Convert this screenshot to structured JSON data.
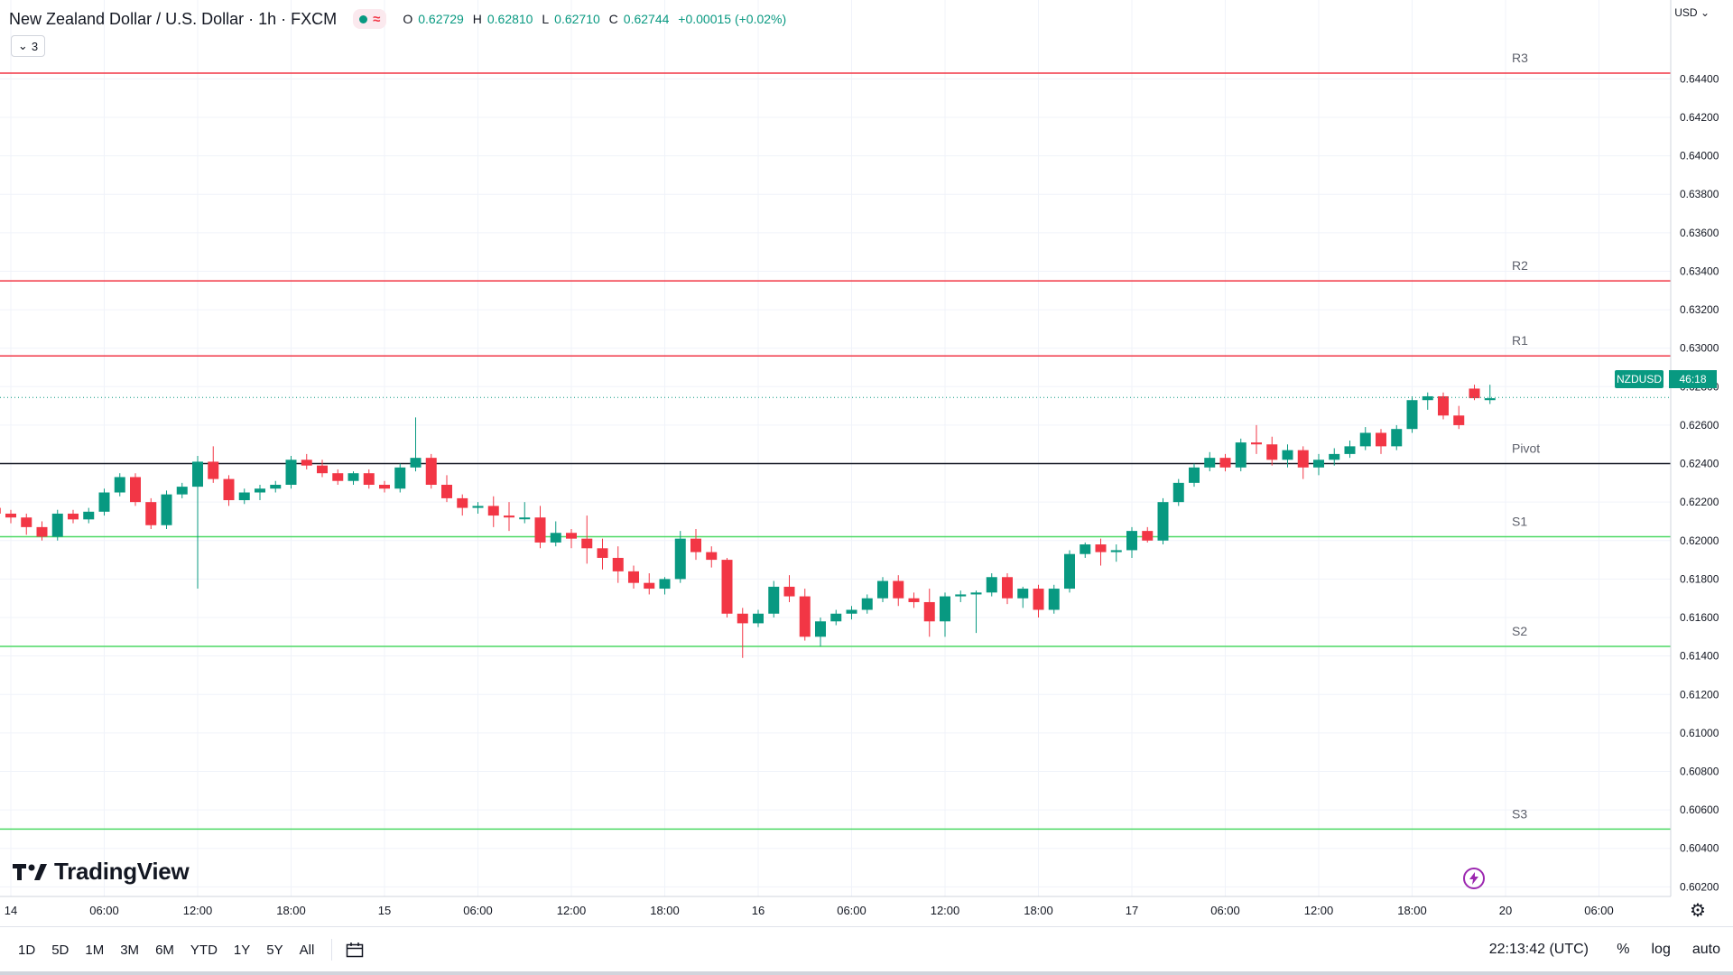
{
  "header": {
    "symbol_title": "New Zealand Dollar / U.S. Dollar · 1h · FXCM",
    "market_status_icon": "market-open-dot-icon",
    "wave_glyph": "≈",
    "ohlc": {
      "o_label": "O",
      "o": "0.62729",
      "h_label": "H",
      "h": "0.62810",
      "l_label": "L",
      "l": "0.62710",
      "c_label": "C",
      "c": "0.62744",
      "change": "+0.00015 (+0.02%)"
    },
    "indicator_count": "3",
    "currency": "USD"
  },
  "price_badge": {
    "symbol": "NZDUSD",
    "countdown": "46:18"
  },
  "watermark": "TradingView",
  "bottom_bar": {
    "periods": [
      "1D",
      "5D",
      "1M",
      "3M",
      "6M",
      "YTD",
      "1Y",
      "5Y",
      "All"
    ],
    "clock": "22:13:42 (UTC)",
    "percent_label": "%",
    "log_label": "log",
    "auto_label": "auto"
  },
  "colors": {
    "up": "#089981",
    "down": "#f23645",
    "resistance": "#f23645",
    "support": "#4cd964",
    "pivot": "#131722",
    "grid": "#f0f3fa",
    "badge": "#089981"
  },
  "chart_data": {
    "type": "candlestick",
    "title": "New Zealand Dollar / U.S. Dollar · 1h · FXCM",
    "ylim": [
      0.6015,
      0.6481
    ],
    "y_ticks": [
      "0.60200",
      "0.60400",
      "0.60600",
      "0.60800",
      "0.61000",
      "0.61200",
      "0.61400",
      "0.61600",
      "0.61800",
      "0.62000",
      "0.62200",
      "0.62400",
      "0.62600",
      "0.62800",
      "0.63000",
      "0.63200",
      "0.63400",
      "0.63600",
      "0.63800",
      "0.64000",
      "0.64200",
      "0.64400"
    ],
    "x_tick_labels": [
      "14",
      "06:00",
      "12:00",
      "18:00",
      "15",
      "06:00",
      "12:00",
      "18:00",
      "16",
      "06:00",
      "12:00",
      "18:00",
      "17",
      "06:00",
      "12:00",
      "18:00",
      "20",
      "06:00"
    ],
    "levels": [
      {
        "label": "R3",
        "value": 0.6443
      },
      {
        "label": "R2",
        "value": 0.6335
      },
      {
        "label": "R1",
        "value": 0.6296
      },
      {
        "label": "Pivot",
        "value": 0.624
      },
      {
        "label": "S1",
        "value": 0.6202
      },
      {
        "label": "S2",
        "value": 0.6145
      },
      {
        "label": "S3",
        "value": 0.605
      }
    ],
    "last_price": 0.62744,
    "grid": true,
    "candles": [
      [
        0.6217,
        0.6221,
        0.6213,
        0.6214
      ],
      [
        0.6214,
        0.6216,
        0.6209,
        0.6212
      ],
      [
        0.6212,
        0.6214,
        0.6203,
        0.6207
      ],
      [
        0.6207,
        0.621,
        0.62,
        0.6202
      ],
      [
        0.6202,
        0.6216,
        0.62,
        0.6214
      ],
      [
        0.6214,
        0.6216,
        0.6209,
        0.6211
      ],
      [
        0.6211,
        0.6217,
        0.6209,
        0.6215
      ],
      [
        0.6215,
        0.6227,
        0.6213,
        0.6225
      ],
      [
        0.6225,
        0.6235,
        0.6223,
        0.6233
      ],
      [
        0.6233,
        0.6235,
        0.6218,
        0.622
      ],
      [
        0.622,
        0.6222,
        0.6206,
        0.6208
      ],
      [
        0.6208,
        0.6226,
        0.6206,
        0.6224
      ],
      [
        0.6224,
        0.623,
        0.6222,
        0.6228
      ],
      [
        0.6228,
        0.6244,
        0.6175,
        0.6241
      ],
      [
        0.6241,
        0.6249,
        0.623,
        0.6232
      ],
      [
        0.6232,
        0.6234,
        0.6218,
        0.6221
      ],
      [
        0.6221,
        0.6227,
        0.6219,
        0.6225
      ],
      [
        0.6225,
        0.6229,
        0.6221,
        0.6227
      ],
      [
        0.6227,
        0.6231,
        0.6225,
        0.6229
      ],
      [
        0.6229,
        0.6244,
        0.6227,
        0.6242
      ],
      [
        0.6242,
        0.6245,
        0.6237,
        0.6239
      ],
      [
        0.6239,
        0.6242,
        0.6233,
        0.6235
      ],
      [
        0.6235,
        0.6237,
        0.6229,
        0.6231
      ],
      [
        0.6231,
        0.6236,
        0.6229,
        0.6235
      ],
      [
        0.6235,
        0.6237,
        0.6227,
        0.6229
      ],
      [
        0.6229,
        0.6231,
        0.6225,
        0.6227
      ],
      [
        0.6227,
        0.624,
        0.6225,
        0.6238
      ],
      [
        0.6238,
        0.6264,
        0.6236,
        0.6243
      ],
      [
        0.6243,
        0.6245,
        0.6227,
        0.6229
      ],
      [
        0.6229,
        0.6234,
        0.622,
        0.6222
      ],
      [
        0.6222,
        0.6224,
        0.6213,
        0.6217
      ],
      [
        0.6217,
        0.622,
        0.6214,
        0.6218
      ],
      [
        0.6218,
        0.6223,
        0.6207,
        0.6213
      ],
      [
        0.6213,
        0.622,
        0.6205,
        0.6212
      ],
      [
        0.6212,
        0.622,
        0.6209,
        0.6212
      ],
      [
        0.6212,
        0.6218,
        0.6196,
        0.6199
      ],
      [
        0.6199,
        0.621,
        0.6197,
        0.6204
      ],
      [
        0.6204,
        0.6206,
        0.6196,
        0.6201
      ],
      [
        0.6201,
        0.6213,
        0.6188,
        0.6196
      ],
      [
        0.6196,
        0.6201,
        0.6185,
        0.6191
      ],
      [
        0.6191,
        0.6197,
        0.6178,
        0.6184
      ],
      [
        0.6184,
        0.6187,
        0.6175,
        0.6178
      ],
      [
        0.6178,
        0.6183,
        0.6172,
        0.6175
      ],
      [
        0.6175,
        0.6181,
        0.6172,
        0.618
      ],
      [
        0.618,
        0.6205,
        0.6178,
        0.6201
      ],
      [
        0.6201,
        0.6206,
        0.619,
        0.6194
      ],
      [
        0.6194,
        0.6197,
        0.6186,
        0.619
      ],
      [
        0.619,
        0.6191,
        0.616,
        0.6162
      ],
      [
        0.6162,
        0.6165,
        0.6139,
        0.6157
      ],
      [
        0.6157,
        0.6164,
        0.6155,
        0.6162
      ],
      [
        0.6162,
        0.6179,
        0.616,
        0.6176
      ],
      [
        0.6176,
        0.6182,
        0.6168,
        0.6171
      ],
      [
        0.6171,
        0.6175,
        0.6148,
        0.615
      ],
      [
        0.615,
        0.616,
        0.6145,
        0.6158
      ],
      [
        0.6158,
        0.6164,
        0.6156,
        0.6162
      ],
      [
        0.6162,
        0.6166,
        0.6159,
        0.6164
      ],
      [
        0.6164,
        0.6172,
        0.6162,
        0.617
      ],
      [
        0.617,
        0.6181,
        0.6168,
        0.6179
      ],
      [
        0.6179,
        0.6182,
        0.6166,
        0.617
      ],
      [
        0.617,
        0.6173,
        0.6165,
        0.6168
      ],
      [
        0.6168,
        0.6175,
        0.615,
        0.6158
      ],
      [
        0.6158,
        0.6173,
        0.615,
        0.6171
      ],
      [
        0.6171,
        0.6174,
        0.6168,
        0.6172
      ],
      [
        0.6172,
        0.6174,
        0.6152,
        0.6173
      ],
      [
        0.6173,
        0.6183,
        0.6171,
        0.6181
      ],
      [
        0.6181,
        0.6183,
        0.6167,
        0.617
      ],
      [
        0.617,
        0.6176,
        0.6165,
        0.6175
      ],
      [
        0.6175,
        0.6177,
        0.616,
        0.6164
      ],
      [
        0.6164,
        0.6177,
        0.6162,
        0.6175
      ],
      [
        0.6175,
        0.6195,
        0.6173,
        0.6193
      ],
      [
        0.6193,
        0.6199,
        0.6191,
        0.6198
      ],
      [
        0.6198,
        0.6201,
        0.6187,
        0.6194
      ],
      [
        0.6194,
        0.6198,
        0.6189,
        0.6195
      ],
      [
        0.6195,
        0.6207,
        0.6191,
        0.6205
      ],
      [
        0.6205,
        0.6207,
        0.6199,
        0.62
      ],
      [
        0.62,
        0.6222,
        0.6198,
        0.622
      ],
      [
        0.622,
        0.6232,
        0.6218,
        0.623
      ],
      [
        0.623,
        0.624,
        0.6228,
        0.6238
      ],
      [
        0.6238,
        0.6246,
        0.6236,
        0.6243
      ],
      [
        0.6243,
        0.6245,
        0.6236,
        0.6238
      ],
      [
        0.6238,
        0.6253,
        0.6236,
        0.6251
      ],
      [
        0.6251,
        0.626,
        0.6245,
        0.625
      ],
      [
        0.625,
        0.6254,
        0.6239,
        0.6242
      ],
      [
        0.6242,
        0.625,
        0.6238,
        0.6247
      ],
      [
        0.6247,
        0.6249,
        0.6232,
        0.6238
      ],
      [
        0.6238,
        0.6245,
        0.6234,
        0.6242
      ],
      [
        0.6242,
        0.6248,
        0.6239,
        0.6245
      ],
      [
        0.6245,
        0.6252,
        0.6243,
        0.6249
      ],
      [
        0.6249,
        0.6259,
        0.6247,
        0.6256
      ],
      [
        0.6256,
        0.6258,
        0.6245,
        0.6249
      ],
      [
        0.6249,
        0.626,
        0.6247,
        0.6258
      ],
      [
        0.6258,
        0.6275,
        0.6256,
        0.6273
      ],
      [
        0.6273,
        0.6277,
        0.6268,
        0.6275
      ],
      [
        0.6275,
        0.6277,
        0.6263,
        0.6265
      ],
      [
        0.6265,
        0.627,
        0.6258,
        0.626
      ],
      [
        0.6279,
        0.6281,
        0.6273,
        0.6274
      ],
      [
        0.6273,
        0.6281,
        0.6271,
        0.6274
      ]
    ]
  }
}
